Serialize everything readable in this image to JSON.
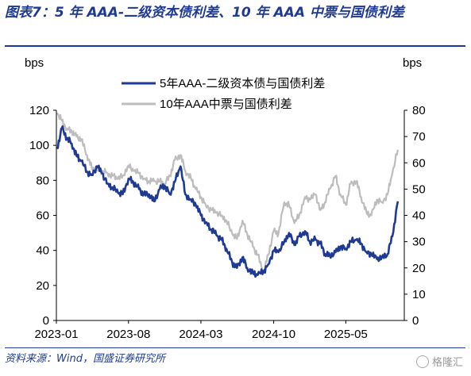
{
  "figure": {
    "title": "图表7：5 年 AAA-二级资本债利差、10 年 AAA 中票与国债利差",
    "source": "资料来源：Wind，国盛证券研究所",
    "watermark": "格隆汇"
  },
  "chart_data": {
    "type": "line",
    "left_axis": {
      "label": "bps",
      "ylim": [
        0,
        120
      ],
      "ticks": [
        0,
        20,
        40,
        60,
        80,
        100,
        120
      ]
    },
    "right_axis": {
      "label": "bps",
      "ylim": [
        0,
        80
      ],
      "ticks": [
        0,
        10,
        20,
        30,
        40,
        50,
        60,
        70,
        80
      ]
    },
    "x_ticks": [
      "2023-01",
      "2023-08",
      "2024-03",
      "2024-10",
      "2025-05"
    ],
    "legend_position": "top-center",
    "series": [
      {
        "name": "5年AAA-二级资本债与国债利差",
        "axis": "left",
        "color": "#1f3a93",
        "x": [
          "2023-01-03",
          "2023-01-17",
          "2023-02-01",
          "2023-02-15",
          "2023-03-01",
          "2023-03-15",
          "2023-04-01",
          "2023-04-15",
          "2023-05-01",
          "2023-05-15",
          "2023-06-01",
          "2023-06-15",
          "2023-07-01",
          "2023-07-15",
          "2023-08-01",
          "2023-08-15",
          "2023-09-01",
          "2023-09-15",
          "2023-10-01",
          "2023-10-15",
          "2023-11-01",
          "2023-11-15",
          "2023-12-01",
          "2023-12-15",
          "2024-01-01",
          "2024-01-15",
          "2024-02-01",
          "2024-02-15",
          "2024-03-01",
          "2024-03-15",
          "2024-04-01",
          "2024-04-15",
          "2024-05-01",
          "2024-05-15",
          "2024-06-01",
          "2024-06-15",
          "2024-07-01",
          "2024-07-15",
          "2024-08-01",
          "2024-08-15",
          "2024-09-01",
          "2024-09-15",
          "2024-10-01",
          "2024-10-15",
          "2024-11-01",
          "2024-11-15",
          "2024-12-01",
          "2024-12-15",
          "2025-01-01",
          "2025-01-15",
          "2025-02-01",
          "2025-02-15",
          "2025-03-01",
          "2025-03-15",
          "2025-04-01",
          "2025-04-15",
          "2025-05-01",
          "2025-05-15",
          "2025-06-01",
          "2025-06-15",
          "2025-07-01",
          "2025-07-15",
          "2025-08-01",
          "2025-08-15",
          "2025-09-01",
          "2025-09-15",
          "2025-10-01"
        ],
        "values": [
          98,
          110,
          104,
          101,
          94,
          91,
          85,
          83,
          88,
          84,
          78,
          76,
          73,
          72,
          81,
          79,
          75,
          72,
          72,
          68,
          75,
          77,
          72,
          79,
          88,
          72,
          69,
          66,
          60,
          56,
          52,
          49,
          46,
          41,
          33,
          30,
          36,
          30,
          27,
          26,
          28,
          32,
          40,
          39,
          45,
          50,
          43,
          48,
          51,
          45,
          46,
          44,
          38,
          37,
          39,
          42,
          41,
          45,
          46,
          44,
          39,
          38,
          35,
          36,
          38,
          48,
          68
        ]
      },
      {
        "name": "10年AAA中票与国债利差",
        "axis": "right",
        "color": "#bdbdbd",
        "x": [
          "2023-01-03",
          "2023-01-17",
          "2023-02-01",
          "2023-02-15",
          "2023-03-01",
          "2023-03-15",
          "2023-04-01",
          "2023-04-15",
          "2023-05-01",
          "2023-05-15",
          "2023-06-01",
          "2023-06-15",
          "2023-07-01",
          "2023-07-15",
          "2023-08-01",
          "2023-08-15",
          "2023-09-01",
          "2023-09-15",
          "2023-10-01",
          "2023-10-15",
          "2023-11-01",
          "2023-11-15",
          "2023-12-01",
          "2023-12-15",
          "2024-01-01",
          "2024-01-15",
          "2024-02-01",
          "2024-02-15",
          "2024-03-01",
          "2024-03-15",
          "2024-04-01",
          "2024-04-15",
          "2024-05-01",
          "2024-05-15",
          "2024-06-01",
          "2024-06-15",
          "2024-07-01",
          "2024-07-15",
          "2024-08-01",
          "2024-08-15",
          "2024-09-01",
          "2024-09-15",
          "2024-10-01",
          "2024-10-15",
          "2024-11-01",
          "2024-11-15",
          "2024-12-01",
          "2024-12-15",
          "2025-01-01",
          "2025-01-15",
          "2025-02-01",
          "2025-02-15",
          "2025-03-01",
          "2025-03-15",
          "2025-04-01",
          "2025-04-15",
          "2025-05-01",
          "2025-05-15",
          "2025-06-01",
          "2025-06-15",
          "2025-07-01",
          "2025-07-15",
          "2025-08-01",
          "2025-08-15",
          "2025-09-01",
          "2025-09-15",
          "2025-10-01"
        ],
        "values": [
          79,
          76,
          73,
          72,
          70,
          69,
          63,
          58,
          57,
          57,
          56,
          55,
          54,
          55,
          59,
          57,
          56,
          54,
          53,
          53,
          53,
          52,
          55,
          61,
          63,
          57,
          54,
          50,
          47,
          44,
          42,
          41,
          40,
          38,
          33,
          31,
          38,
          33,
          28,
          25,
          18,
          25,
          34,
          33,
          45,
          44,
          37,
          40,
          47,
          46,
          48,
          42,
          45,
          50,
          55,
          48,
          44,
          52,
          53,
          47,
          41,
          40,
          46,
          45,
          48,
          56,
          65
        ]
      }
    ]
  }
}
